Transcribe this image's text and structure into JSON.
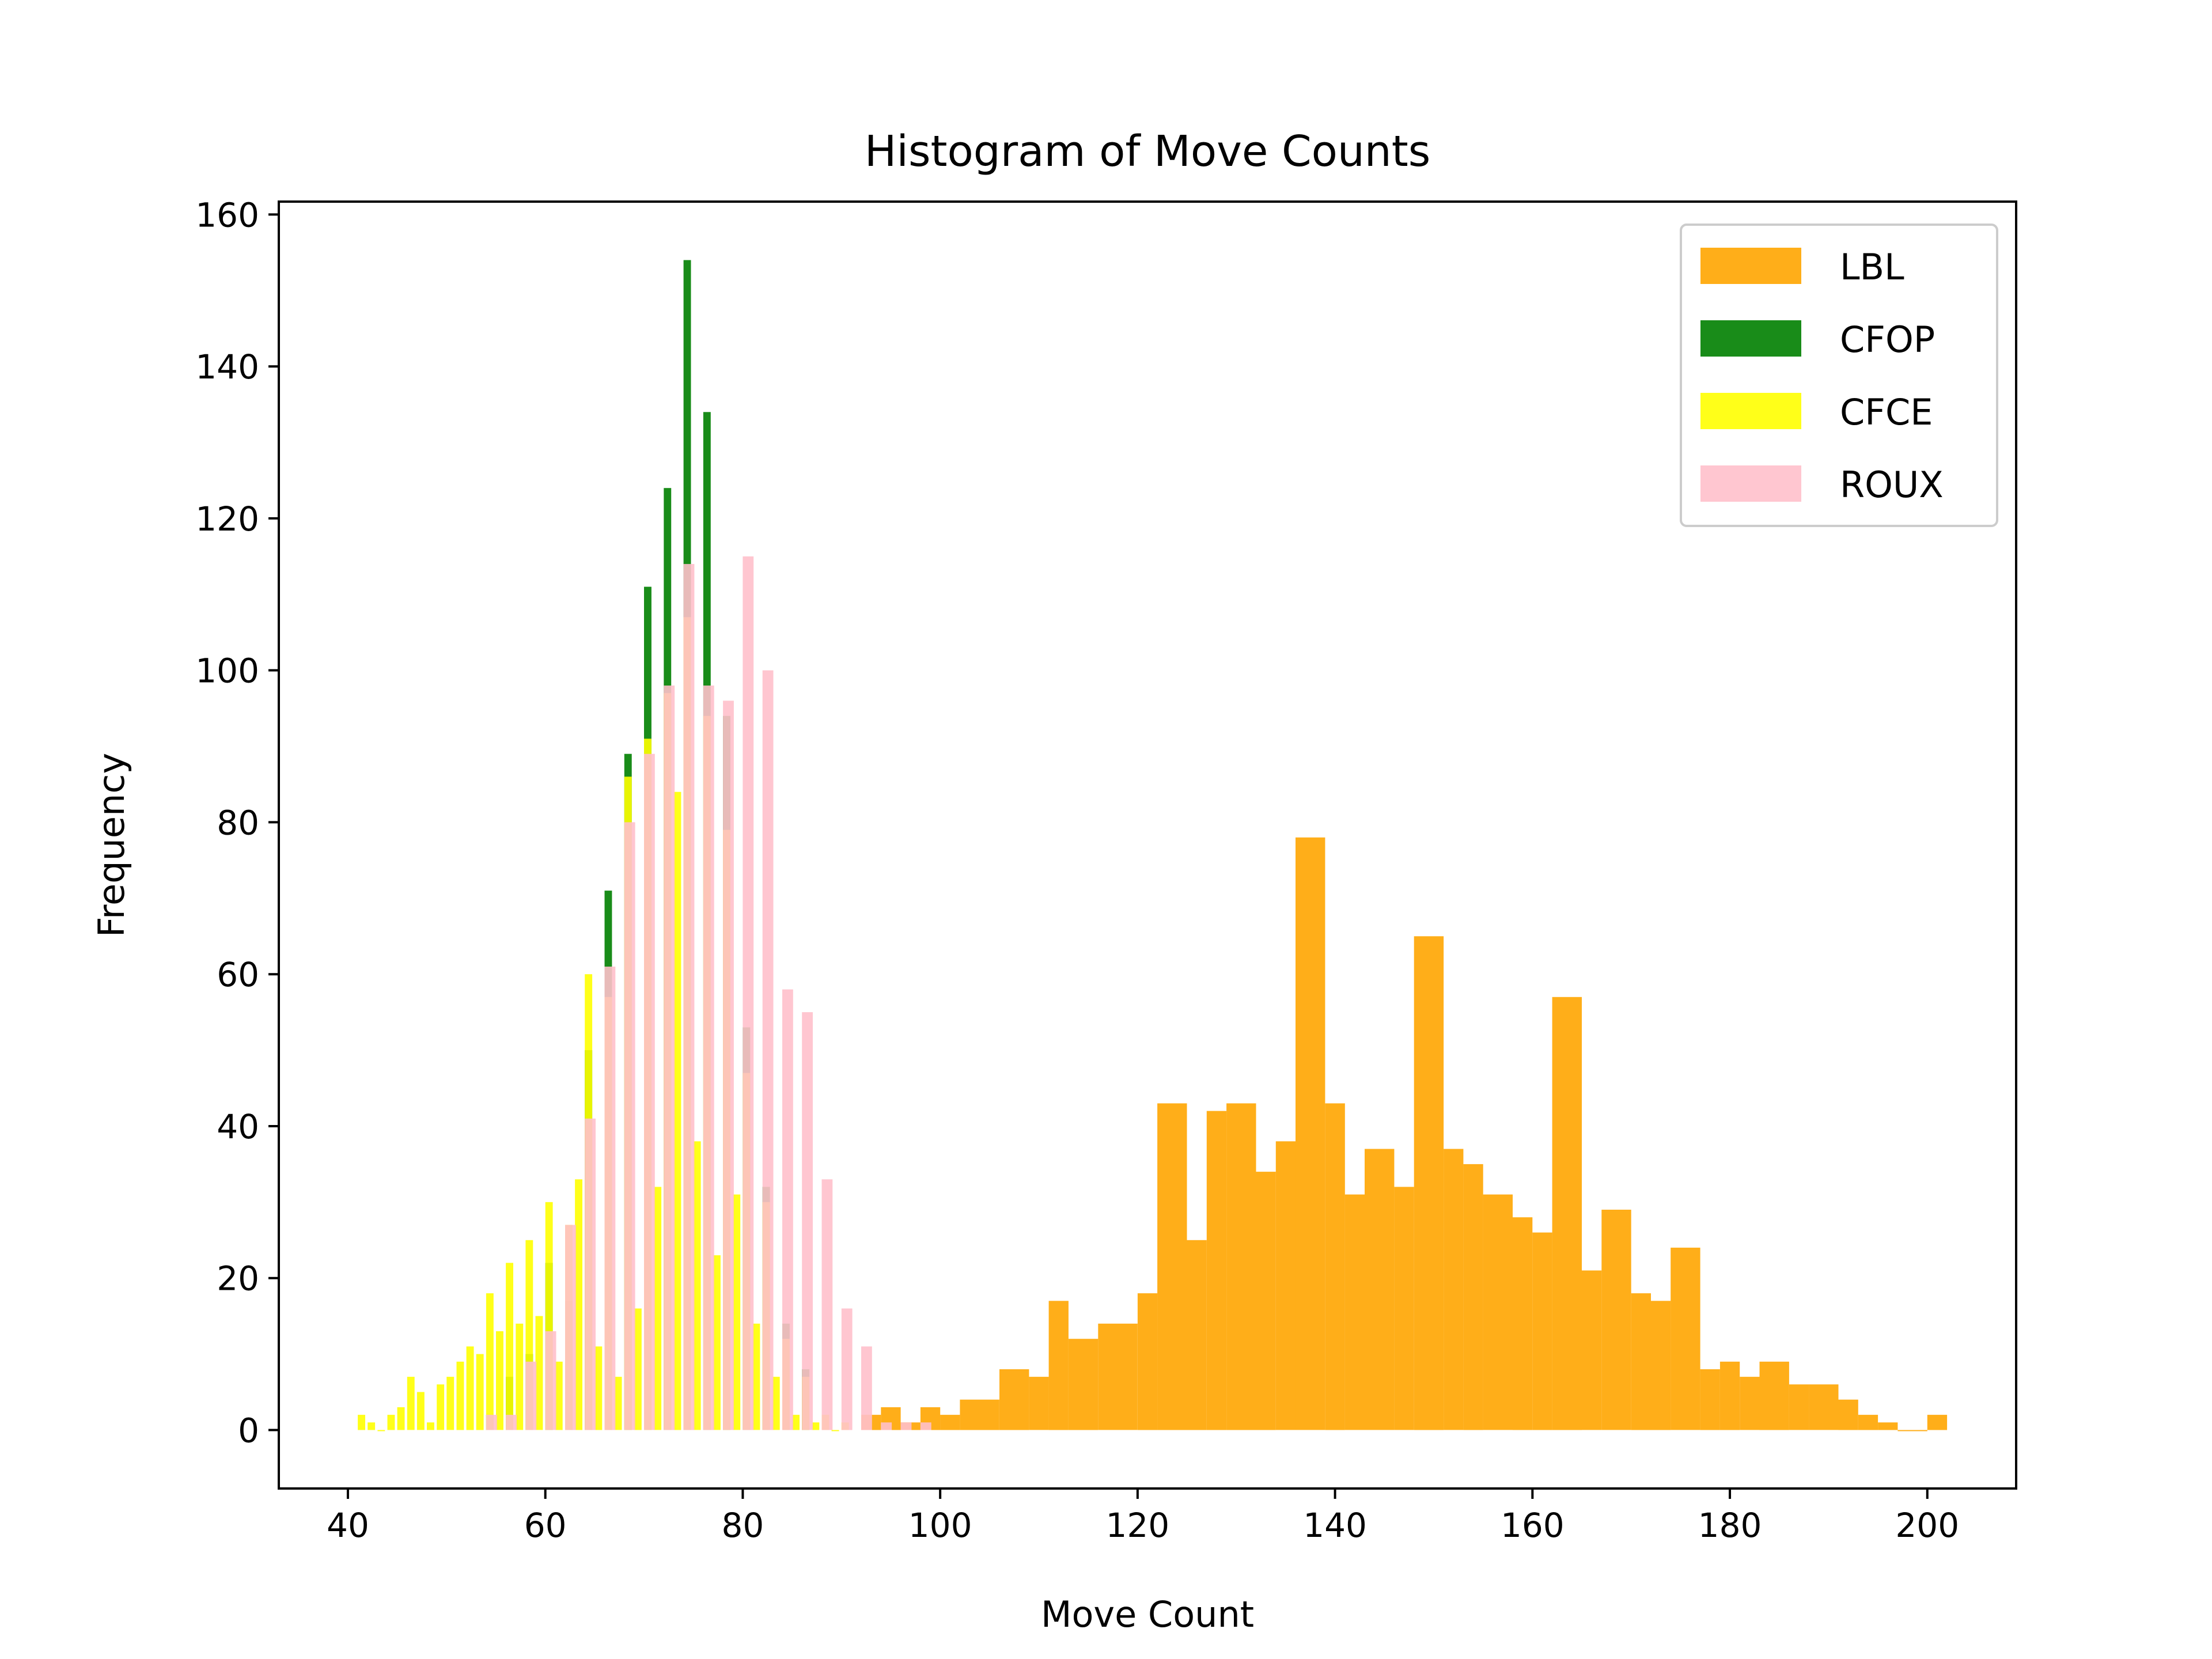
{
  "chart_data": {
    "type": "histogram",
    "title": "Histogram of Move Counts",
    "xlabel": "Move Count",
    "ylabel": "Frequency",
    "xlim": [
      33.0,
      209.0
    ],
    "ylim": [
      -7.7,
      161.7
    ],
    "xticks": [
      40,
      60,
      80,
      100,
      120,
      140,
      160,
      180,
      200
    ],
    "yticks": [
      0,
      20,
      40,
      60,
      80,
      100,
      120,
      140,
      160
    ],
    "legend_position": "upper right",
    "series": [
      {
        "name": "LBL",
        "color": "#FFA500",
        "alpha": 0.9,
        "bins": [
          [
            92,
            94,
            2
          ],
          [
            94,
            96,
            3
          ],
          [
            96,
            98,
            1
          ],
          [
            98,
            100,
            3
          ],
          [
            100,
            102,
            2
          ],
          [
            102,
            106,
            4
          ],
          [
            106,
            109,
            8
          ],
          [
            109,
            111,
            7
          ],
          [
            111,
            113,
            17
          ],
          [
            113,
            116,
            12
          ],
          [
            116,
            120,
            14
          ],
          [
            120,
            122,
            18
          ],
          [
            122,
            125,
            43
          ],
          [
            125,
            127,
            25
          ],
          [
            127,
            129,
            42
          ],
          [
            129,
            132,
            43
          ],
          [
            132,
            134,
            34
          ],
          [
            134,
            136,
            38
          ],
          [
            136,
            139,
            78
          ],
          [
            139,
            141,
            43
          ],
          [
            141,
            143,
            31
          ],
          [
            143,
            146,
            37
          ],
          [
            146,
            148,
            32
          ],
          [
            148,
            151,
            65
          ],
          [
            151,
            153,
            37
          ],
          [
            153,
            155,
            35
          ],
          [
            155,
            158,
            31
          ],
          [
            158,
            160,
            28
          ],
          [
            160,
            162,
            26
          ],
          [
            162,
            165,
            57
          ],
          [
            165,
            167,
            21
          ],
          [
            167,
            170,
            29
          ],
          [
            170,
            172,
            18
          ],
          [
            172,
            174,
            17
          ],
          [
            174,
            177,
            24
          ],
          [
            177,
            179,
            8
          ],
          [
            179,
            181,
            9
          ],
          [
            181,
            183,
            7
          ],
          [
            183,
            186,
            9
          ],
          [
            186,
            188,
            6
          ],
          [
            188,
            191,
            6
          ],
          [
            191,
            193,
            4
          ],
          [
            193,
            195,
            2
          ],
          [
            195,
            197,
            1
          ],
          [
            197,
            200,
            0
          ],
          [
            200,
            202,
            2
          ]
        ]
      },
      {
        "name": "CFOP",
        "color": "#008000",
        "alpha": 0.9,
        "bin_width": 0.75,
        "bins": [
          [
            54,
            2
          ],
          [
            56,
            7
          ],
          [
            58,
            10
          ],
          [
            60,
            22
          ],
          [
            62,
            17
          ],
          [
            64,
            50
          ],
          [
            66,
            71
          ],
          [
            68,
            89
          ],
          [
            70,
            111
          ],
          [
            72,
            124
          ],
          [
            74,
            154
          ],
          [
            76,
            134
          ],
          [
            78,
            94
          ],
          [
            80,
            53
          ],
          [
            82,
            32
          ],
          [
            84,
            14
          ],
          [
            86,
            8
          ]
        ]
      },
      {
        "name": "CFCE",
        "color": "#FFFF00",
        "alpha": 0.9,
        "bin_width": 0.75,
        "bins": [
          [
            41,
            2
          ],
          [
            42,
            1
          ],
          [
            43,
            0
          ],
          [
            44,
            2
          ],
          [
            45,
            3
          ],
          [
            46,
            7
          ],
          [
            47,
            5
          ],
          [
            48,
            1
          ],
          [
            49,
            6
          ],
          [
            50,
            7
          ],
          [
            51,
            9
          ],
          [
            52,
            11
          ],
          [
            53,
            10
          ],
          [
            54,
            18
          ],
          [
            55,
            13
          ],
          [
            56,
            22
          ],
          [
            57,
            14
          ],
          [
            58,
            25
          ],
          [
            59,
            15
          ],
          [
            60,
            30
          ],
          [
            61,
            9
          ],
          [
            62,
            27
          ],
          [
            63,
            33
          ],
          [
            64,
            60
          ],
          [
            65,
            11
          ],
          [
            66,
            57
          ],
          [
            67,
            7
          ],
          [
            68,
            86
          ],
          [
            69,
            16
          ],
          [
            70,
            91
          ],
          [
            71,
            32
          ],
          [
            72,
            97
          ],
          [
            73,
            84
          ],
          [
            74,
            107
          ],
          [
            75,
            38
          ],
          [
            76,
            94
          ],
          [
            77,
            23
          ],
          [
            78,
            79
          ],
          [
            79,
            31
          ],
          [
            80,
            47
          ],
          [
            81,
            14
          ],
          [
            82,
            30
          ],
          [
            83,
            7
          ],
          [
            84,
            12
          ],
          [
            85,
            2
          ],
          [
            86,
            7
          ],
          [
            87,
            1
          ],
          [
            88,
            2
          ],
          [
            89,
            0
          ],
          [
            90,
            1
          ]
        ]
      },
      {
        "name": "ROUX",
        "color": "#FFC0CB",
        "alpha": 0.9,
        "bin_width": 1.1,
        "bins": [
          [
            54,
            2
          ],
          [
            56,
            2
          ],
          [
            58,
            9
          ],
          [
            60,
            13
          ],
          [
            62,
            27
          ],
          [
            64,
            41
          ],
          [
            66,
            61
          ],
          [
            68,
            80
          ],
          [
            70,
            89
          ],
          [
            72,
            98
          ],
          [
            74,
            114
          ],
          [
            76,
            98
          ],
          [
            78,
            96
          ],
          [
            80,
            115
          ],
          [
            82,
            100
          ],
          [
            84,
            58
          ],
          [
            86,
            55
          ],
          [
            88,
            33
          ],
          [
            90,
            16
          ],
          [
            92,
            11
          ],
          [
            94,
            1
          ],
          [
            96,
            1
          ],
          [
            98,
            1
          ]
        ]
      }
    ]
  }
}
